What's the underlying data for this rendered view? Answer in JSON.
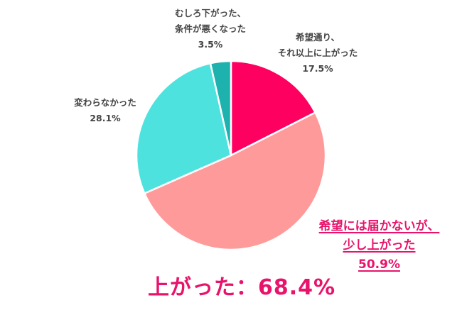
{
  "chart_data": {
    "type": "pie",
    "title": "",
    "start_angle_deg": 0,
    "direction": "clockwise",
    "slices": [
      {
        "label": "希望通り、それ以上に上がった",
        "value": 17.5,
        "display": "17.5%",
        "color": "#fe0060"
      },
      {
        "label": "希望には届かないが、少し上がった",
        "value": 50.9,
        "display": "50.9%",
        "color": "#fe9b9a"
      },
      {
        "label": "変わらなかった",
        "value": 28.1,
        "display": "28.1%",
        "color": "#4de2de"
      },
      {
        "label": "むしろ下がった、条件が悪くなった",
        "value": 3.5,
        "display": "3.5%",
        "color": "#1db2ae"
      }
    ],
    "annotation": "上がった：68.4%"
  },
  "labels": {
    "up_more": {
      "line1": "希望通り、",
      "line2": "それ以上に上がった",
      "pct": "17.5%"
    },
    "up_little": {
      "line1": "希望には届かないが、",
      "line2": "少し上がった",
      "pct": "50.9%"
    },
    "same": {
      "line1": "変わらなかった",
      "pct": "28.1%"
    },
    "down": {
      "line1": "むしろ下がった、",
      "line2": "条件が悪くなった",
      "pct": "3.5%"
    }
  },
  "summary": "上がった：68.4%"
}
